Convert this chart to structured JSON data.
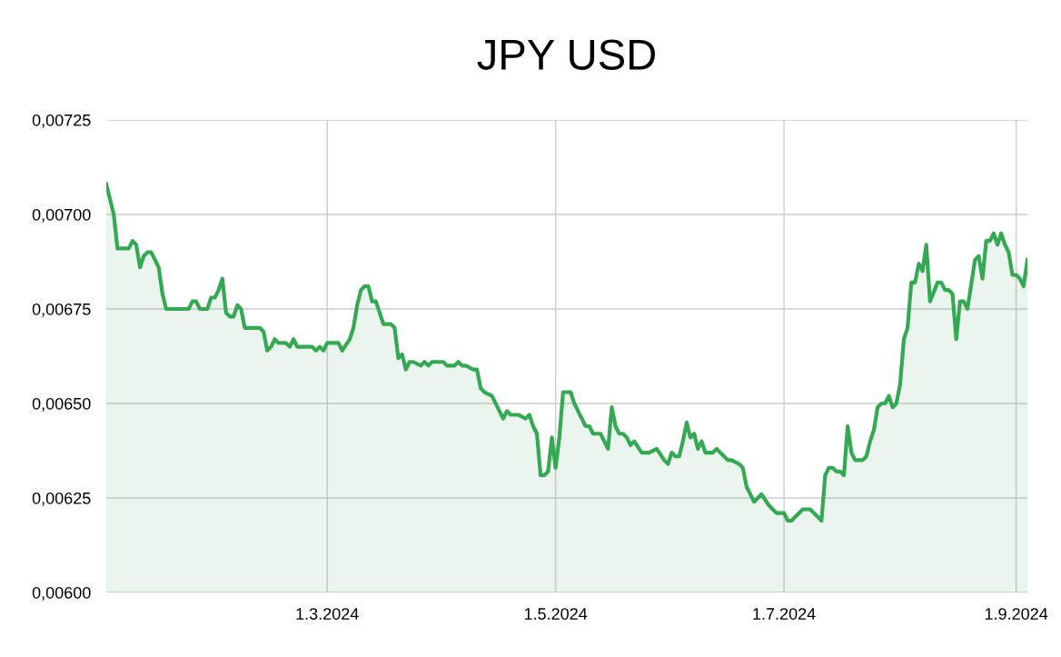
{
  "chart_data": {
    "type": "area",
    "title": "JPY USD",
    "x": [
      "2024-01-02",
      "2024-01-04",
      "2024-01-05",
      "2024-01-06",
      "2024-01-08",
      "2024-01-09",
      "2024-01-10",
      "2024-01-11",
      "2024-01-12",
      "2024-01-13",
      "2024-01-14",
      "2024-01-15",
      "2024-01-16",
      "2024-01-17",
      "2024-01-18",
      "2024-01-22",
      "2024-01-24",
      "2024-01-25",
      "2024-01-26",
      "2024-01-27",
      "2024-01-29",
      "2024-01-30",
      "2024-01-31",
      "2024-02-01",
      "2024-02-02",
      "2024-02-03",
      "2024-02-04",
      "2024-02-05",
      "2024-02-06",
      "2024-02-07",
      "2024-02-08",
      "2024-02-10",
      "2024-02-12",
      "2024-02-13",
      "2024-02-14",
      "2024-02-15",
      "2024-02-16",
      "2024-02-17",
      "2024-02-19",
      "2024-02-20",
      "2024-02-21",
      "2024-02-22",
      "2024-02-23",
      "2024-02-26",
      "2024-02-27",
      "2024-02-28",
      "2024-02-29",
      "2024-03-01",
      "2024-03-04",
      "2024-03-05",
      "2024-03-07",
      "2024-03-08",
      "2024-03-09",
      "2024-03-10",
      "2024-03-11",
      "2024-03-12",
      "2024-03-13",
      "2024-03-14",
      "2024-03-16",
      "2024-03-18",
      "2024-03-19",
      "2024-03-20",
      "2024-03-21",
      "2024-03-22",
      "2024-03-23",
      "2024-03-24",
      "2024-03-26",
      "2024-03-27",
      "2024-03-28",
      "2024-03-29",
      "2024-03-31",
      "2024-04-01",
      "2024-04-02",
      "2024-04-03",
      "2024-04-04",
      "2024-04-05",
      "2024-04-06",
      "2024-04-07",
      "2024-04-09",
      "2024-04-10",
      "2024-04-11",
      "2024-04-12",
      "2024-04-14",
      "2024-04-16",
      "2024-04-17",
      "2024-04-18",
      "2024-04-19",
      "2024-04-21",
      "2024-04-23",
      "2024-04-24",
      "2024-04-25",
      "2024-04-26",
      "2024-04-27",
      "2024-04-28",
      "2024-04-29",
      "2024-04-30",
      "2024-05-01",
      "2024-05-02",
      "2024-05-03",
      "2024-05-05",
      "2024-05-06",
      "2024-05-07",
      "2024-05-08",
      "2024-05-09",
      "2024-05-10",
      "2024-05-11",
      "2024-05-12",
      "2024-05-13",
      "2024-05-14",
      "2024-05-15",
      "2024-05-16",
      "2024-05-17",
      "2024-05-18",
      "2024-05-19",
      "2024-05-20",
      "2024-05-21",
      "2024-05-22",
      "2024-05-24",
      "2024-05-26",
      "2024-05-28",
      "2024-05-30",
      "2024-05-31",
      "2024-06-01",
      "2024-06-02",
      "2024-06-03",
      "2024-06-04",
      "2024-06-05",
      "2024-06-06",
      "2024-06-07",
      "2024-06-08",
      "2024-06-09",
      "2024-06-10",
      "2024-06-11",
      "2024-06-12",
      "2024-06-13",
      "2024-06-15",
      "2024-06-16",
      "2024-06-17",
      "2024-06-19",
      "2024-06-20",
      "2024-06-21",
      "2024-06-22",
      "2024-06-23",
      "2024-06-25",
      "2024-06-27",
      "2024-06-28",
      "2024-06-29",
      "2024-07-01",
      "2024-07-02",
      "2024-07-03",
      "2024-07-04",
      "2024-07-06",
      "2024-07-07",
      "2024-07-08",
      "2024-07-09",
      "2024-07-10",
      "2024-07-11",
      "2024-07-12",
      "2024-07-13",
      "2024-07-14",
      "2024-07-15",
      "2024-07-16",
      "2024-07-17",
      "2024-07-18",
      "2024-07-19",
      "2024-07-20",
      "2024-07-22",
      "2024-07-23",
      "2024-07-24",
      "2024-07-25",
      "2024-07-26",
      "2024-07-27",
      "2024-07-28",
      "2024-07-29",
      "2024-07-30",
      "2024-07-31",
      "2024-08-01",
      "2024-08-02",
      "2024-08-03",
      "2024-08-04",
      "2024-08-05",
      "2024-08-06",
      "2024-08-07",
      "2024-08-08",
      "2024-08-09",
      "2024-08-11",
      "2024-08-12",
      "2024-08-13",
      "2024-08-14",
      "2024-08-15",
      "2024-08-16",
      "2024-08-17",
      "2024-08-18",
      "2024-08-19",
      "2024-08-21",
      "2024-08-22",
      "2024-08-23",
      "2024-08-24",
      "2024-08-25",
      "2024-08-26",
      "2024-08-27",
      "2024-08-28",
      "2024-08-29",
      "2024-08-30",
      "2024-08-31",
      "2024-09-01",
      "2024-09-02",
      "2024-09-03",
      "2024-09-04"
    ],
    "series": [
      {
        "color": "#34a853",
        "values": [
          0.00708,
          0.007,
          0.00691,
          0.00691,
          0.00691,
          0.00693,
          0.00692,
          0.00686,
          0.00689,
          0.0069,
          0.0069,
          0.00688,
          0.00686,
          0.00679,
          0.00675,
          0.00675,
          0.00675,
          0.00677,
          0.00677,
          0.00675,
          0.00675,
          0.00678,
          0.00678,
          0.0068,
          0.00683,
          0.00674,
          0.00673,
          0.00673,
          0.00676,
          0.00675,
          0.0067,
          0.0067,
          0.0067,
          0.00669,
          0.00664,
          0.00665,
          0.00667,
          0.00666,
          0.00666,
          0.00665,
          0.00667,
          0.00665,
          0.00665,
          0.00665,
          0.00664,
          0.00665,
          0.00664,
          0.00666,
          0.00666,
          0.00664,
          0.00667,
          0.0067,
          0.00676,
          0.0068,
          0.00681,
          0.00681,
          0.00677,
          0.00677,
          0.00671,
          0.00671,
          0.0067,
          0.00662,
          0.00663,
          0.00659,
          0.00661,
          0.00661,
          0.0066,
          0.00661,
          0.0066,
          0.00661,
          0.00661,
          0.00661,
          0.0066,
          0.0066,
          0.0066,
          0.00661,
          0.0066,
          0.0066,
          0.00659,
          0.00659,
          0.00654,
          0.00653,
          0.00652,
          0.00648,
          0.00646,
          0.00648,
          0.00647,
          0.00647,
          0.00646,
          0.00647,
          0.00644,
          0.00642,
          0.00631,
          0.00631,
          0.00632,
          0.00641,
          0.00633,
          0.00641,
          0.00653,
          0.00653,
          0.0065,
          0.00648,
          0.00646,
          0.00644,
          0.00644,
          0.00642,
          0.00642,
          0.00642,
          0.0064,
          0.00638,
          0.00649,
          0.00644,
          0.00642,
          0.00642,
          0.00641,
          0.00639,
          0.0064,
          0.00637,
          0.00637,
          0.00638,
          0.00635,
          0.00634,
          0.00637,
          0.00636,
          0.00636,
          0.0064,
          0.00645,
          0.00641,
          0.00642,
          0.00638,
          0.0064,
          0.00637,
          0.00637,
          0.00637,
          0.00638,
          0.00636,
          0.00635,
          0.00635,
          0.00634,
          0.00633,
          0.00628,
          0.00626,
          0.00624,
          0.00626,
          0.00623,
          0.00622,
          0.00621,
          0.00621,
          0.00619,
          0.00619,
          0.0062,
          0.00622,
          0.00622,
          0.00622,
          0.00621,
          0.0062,
          0.00619,
          0.00631,
          0.00633,
          0.00633,
          0.00632,
          0.00632,
          0.00631,
          0.00644,
          0.00637,
          0.00635,
          0.00635,
          0.00636,
          0.0064,
          0.00643,
          0.00649,
          0.0065,
          0.0065,
          0.00652,
          0.00649,
          0.0065,
          0.00655,
          0.00667,
          0.0067,
          0.00682,
          0.00682,
          0.00687,
          0.00685,
          0.00692,
          0.00677,
          0.00682,
          0.00682,
          0.0068,
          0.0068,
          0.00679,
          0.00667,
          0.00677,
          0.00677,
          0.00675,
          0.00688,
          0.00689,
          0.00683,
          0.00693,
          0.00693,
          0.00695,
          0.00692,
          0.00695,
          0.00692,
          0.0069,
          0.00684,
          0.00684,
          0.00683,
          0.00681,
          0.00688
        ]
      }
    ],
    "xlim": [
      "2024-01-02",
      "2024-09-04"
    ],
    "xticks": [
      {
        "value": "2024-03-01",
        "label": "1.3.2024"
      },
      {
        "value": "2024-05-01",
        "label": "1.5.2024"
      },
      {
        "value": "2024-07-01",
        "label": "1.7.2024"
      },
      {
        "value": "2024-09-01",
        "label": "1.9.2024"
      }
    ],
    "ylim": [
      0.006,
      0.00725
    ],
    "yticks": [
      {
        "value": 0.006,
        "label": "0,00600"
      },
      {
        "value": 0.00625,
        "label": "0,00625"
      },
      {
        "value": 0.0065,
        "label": "0,00650"
      },
      {
        "value": 0.00675,
        "label": "0,00675"
      },
      {
        "value": 0.007,
        "label": "0,00700"
      },
      {
        "value": 0.00725,
        "label": "0,00725"
      }
    ],
    "grid": true,
    "line_style": "solid"
  }
}
